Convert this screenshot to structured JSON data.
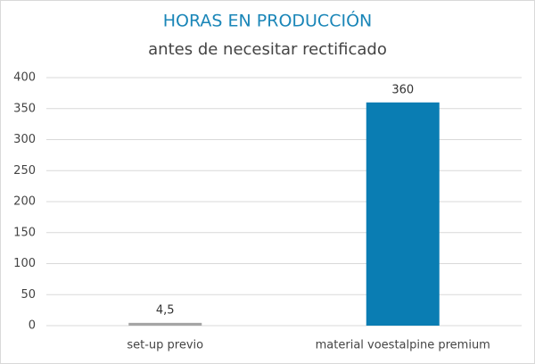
{
  "chart_data": {
    "type": "bar",
    "title": "HORAS EN PRODUCCIÓN",
    "subtitle": "antes de necesitar rectificado",
    "categories": [
      "set-up previo",
      "material voestalpine premium"
    ],
    "values": [
      4.5,
      360
    ],
    "value_labels": [
      "4,5",
      "360"
    ],
    "colors": [
      "#a5a5a5",
      "#0a7db3"
    ],
    "ylim": [
      0,
      400
    ],
    "yticks": [
      0,
      50,
      100,
      150,
      200,
      250,
      300,
      350,
      400
    ],
    "grid": true
  }
}
